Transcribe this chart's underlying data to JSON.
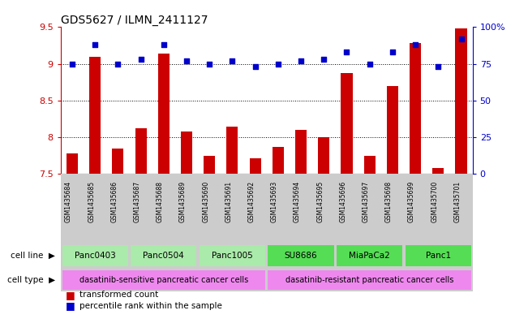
{
  "title": "GDS5627 / ILMN_2411127",
  "samples": [
    "GSM1435684",
    "GSM1435685",
    "GSM1435686",
    "GSM1435687",
    "GSM1435688",
    "GSM1435689",
    "GSM1435690",
    "GSM1435691",
    "GSM1435692",
    "GSM1435693",
    "GSM1435694",
    "GSM1435695",
    "GSM1435696",
    "GSM1435697",
    "GSM1435698",
    "GSM1435699",
    "GSM1435700",
    "GSM1435701"
  ],
  "transformed_count": [
    7.78,
    9.1,
    7.85,
    8.12,
    9.14,
    8.08,
    7.75,
    8.15,
    7.72,
    7.87,
    8.1,
    8.0,
    8.87,
    7.75,
    8.7,
    9.28,
    7.58,
    9.48
  ],
  "percentile_rank": [
    75,
    88,
    75,
    78,
    88,
    77,
    75,
    77,
    73,
    75,
    77,
    78,
    83,
    75,
    83,
    88,
    73,
    92
  ],
  "ylim_left": [
    7.5,
    9.5
  ],
  "ylim_right": [
    0,
    100
  ],
  "yticks_left": [
    7.5,
    8.0,
    8.5,
    9.0,
    9.5
  ],
  "ytick_labels_left": [
    "7.5",
    "8",
    "8.5",
    "9",
    "9.5"
  ],
  "yticks_right": [
    0,
    25,
    50,
    75,
    100
  ],
  "ytick_labels_right": [
    "0",
    "25",
    "50",
    "75",
    "100%"
  ],
  "bar_color": "#cc0000",
  "scatter_color": "#0000cc",
  "cell_lines": [
    {
      "name": "Panc0403",
      "start": 0,
      "end": 3,
      "color": "#aaeaaa"
    },
    {
      "name": "Panc0504",
      "start": 3,
      "end": 6,
      "color": "#aaeaaa"
    },
    {
      "name": "Panc1005",
      "start": 6,
      "end": 9,
      "color": "#aaeaaa"
    },
    {
      "name": "SU8686",
      "start": 9,
      "end": 12,
      "color": "#55dd55"
    },
    {
      "name": "MiaPaCa2",
      "start": 12,
      "end": 15,
      "color": "#55dd55"
    },
    {
      "name": "Panc1",
      "start": 15,
      "end": 18,
      "color": "#55dd55"
    }
  ],
  "cell_types": [
    {
      "name": "dasatinib-sensitive pancreatic cancer cells",
      "start": 0,
      "end": 9,
      "color": "#ee88ee"
    },
    {
      "name": "dasatinib-resistant pancreatic cancer cells",
      "start": 9,
      "end": 18,
      "color": "#ee88ee"
    }
  ],
  "legend_bar_label": "transformed count",
  "legend_scatter_label": "percentile rank within the sample",
  "background_color": "#ffffff",
  "tick_area_bg": "#cccccc",
  "cell_line_label": "cell line",
  "cell_type_label": "cell type"
}
